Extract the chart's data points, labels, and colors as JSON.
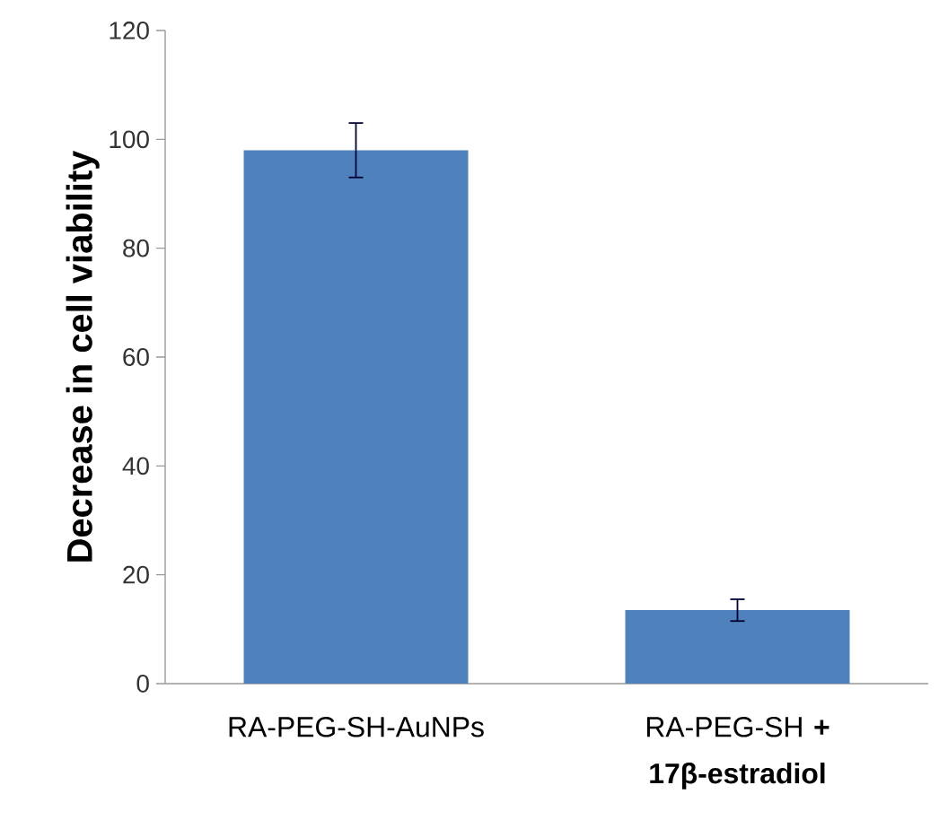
{
  "chart_data": {
    "type": "bar",
    "ylabel": "Decrease in cell viability",
    "categories": [
      "RA-PEG-SH-AuNPs",
      "RA-PEG-SH **+ 17β-estradiol**"
    ],
    "values": [
      98,
      13.5
    ],
    "errors": [
      5,
      2
    ],
    "color": "#4f81bd",
    "ylim": [
      0,
      120
    ],
    "yticks": [
      0,
      20,
      40,
      60,
      80,
      100,
      120
    ],
    "grid": false
  }
}
